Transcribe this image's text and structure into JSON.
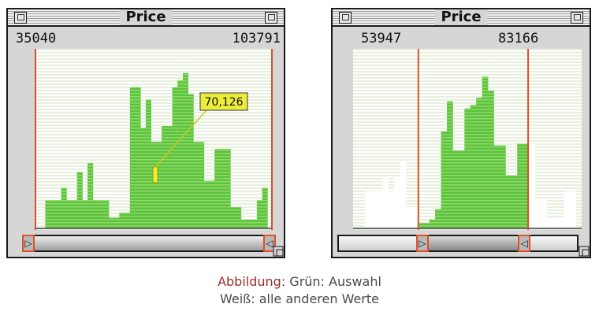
{
  "colors": {
    "selected": "#5cc33a",
    "unselected": "#ffffff",
    "selector_line": "#d9502a",
    "highlight": "#ecec3a",
    "caption_label": "#9b2b2b"
  },
  "left": {
    "title": "Price",
    "min_value": "35040",
    "max_value": "103791",
    "tooltip": "70,126",
    "bars": [
      0,
      0,
      0.16,
      0.16,
      0.16,
      0.23,
      0.16,
      0.16,
      0.32,
      0.16,
      0.37,
      0.16,
      0.16,
      0.16,
      0.06,
      0.06,
      0.09,
      0.09,
      0.8,
      0.8,
      0.57,
      0.73,
      0.49,
      0.49,
      0.58,
      0.58,
      0.8,
      0.84,
      0.88,
      0.76,
      0.49,
      0.49,
      0.27,
      0.27,
      0.45,
      0.45,
      0.45,
      0.12,
      0.12,
      0.05,
      0.05,
      0.05,
      0.16,
      0.23,
      0
    ],
    "sel_start": 0,
    "sel_end": 45
  },
  "right": {
    "title": "Price",
    "min_value": "53947",
    "max_value": "83166",
    "bars": [
      0,
      0,
      0.21,
      0.21,
      0.21,
      0.29,
      0.21,
      0.29,
      0.38,
      0.12,
      0.12,
      0.03,
      0.03,
      0.05,
      0.11,
      0.55,
      0.72,
      0.44,
      0.44,
      0.68,
      0.7,
      0.74,
      0.86,
      0.78,
      0.47,
      0.47,
      0.3,
      0.3,
      0.48,
      0.48,
      0.48,
      0.16,
      0.16,
      0.06,
      0.06,
      0.06,
      0.21,
      0.21,
      0
    ],
    "sel_start": 11,
    "sel_end": 30
  },
  "caption": {
    "label": "Abbildung",
    "line1_rest": ": Grün: Auswahl",
    "line2": "Weiß: alle anderen Werte"
  }
}
